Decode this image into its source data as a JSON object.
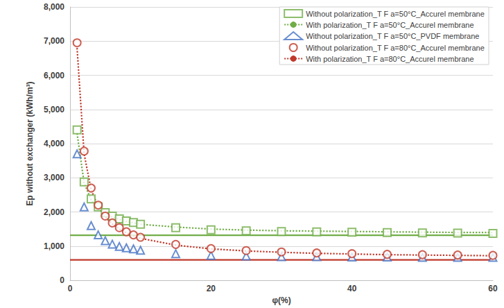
{
  "chart_data": {
    "type": "scatter",
    "x_label": "φ(%)",
    "y_label": "Ep without exchanger (kWh/m³)",
    "xlim": [
      0,
      60
    ],
    "xticks": [
      0,
      20,
      40,
      60
    ],
    "ylim": [
      0,
      8000
    ],
    "yticks": [
      0,
      1000,
      2000,
      3000,
      4000,
      5000,
      6000,
      7000,
      8000
    ],
    "grid": true,
    "legend": "top-right",
    "x": [
      1,
      2,
      3,
      4,
      5,
      6,
      7,
      8,
      9,
      10,
      15,
      20,
      25,
      30,
      35,
      40,
      45,
      50,
      55,
      60
    ],
    "series": [
      {
        "name": "Without polarization_T F a=50°C_Accurel membrane",
        "type": "scatter",
        "marker": "square",
        "color": "#70ad47",
        "values": [
          4400,
          2880,
          2380,
          2150,
          1980,
          1880,
          1800,
          1740,
          1690,
          1640,
          1540,
          1480,
          1450,
          1430,
          1420,
          1410,
          1400,
          1390,
          1380,
          1370
        ]
      },
      {
        "name": "With polarization_T F a=50°C_Accurel membrane",
        "type": "line",
        "line_style": "dotted",
        "color": "#70ad47",
        "values": [
          4300,
          2850,
          2350,
          2100,
          1950,
          1850,
          1780,
          1720,
          1680,
          1640,
          1560,
          1500,
          1470,
          1450,
          1440,
          1430,
          1420,
          1410,
          1400,
          1400
        ]
      },
      {
        "name": "Without polarization_T F a=50°C_PVDF membrane",
        "type": "scatter",
        "marker": "triangle",
        "color": "#4472c4",
        "values": [
          3700,
          2150,
          1600,
          1330,
          1160,
          1060,
          990,
          950,
          920,
          880,
          780,
          730,
          710,
          690,
          690,
          680,
          680,
          670,
          670,
          670
        ]
      },
      {
        "name": "Without polarization_T F a=80°C_Accurel membrane",
        "type": "scatter",
        "marker": "circle",
        "color": "#c0392b",
        "values": [
          6950,
          3780,
          2700,
          2200,
          1880,
          1680,
          1540,
          1420,
          1330,
          1260,
          1050,
          930,
          870,
          830,
          800,
          780,
          760,
          750,
          740,
          730
        ]
      },
      {
        "name": "With polarization_T F a=80°C_Accurel membrane",
        "type": "line",
        "line_style": "dotted",
        "color": "#c0392b",
        "values": [
          6800,
          3700,
          2650,
          2150,
          1850,
          1650,
          1500,
          1390,
          1300,
          1230,
          1030,
          920,
          860,
          820,
          790,
          770,
          750,
          740,
          730,
          720
        ]
      },
      {
        "type": "line",
        "line_style": "solid",
        "color": "#70ad47",
        "x": [
          0,
          60
        ],
        "values": [
          1320,
          1320
        ]
      },
      {
        "type": "line",
        "line_style": "solid",
        "color": "#c0392b",
        "x": [
          0,
          60
        ],
        "values": [
          600,
          600
        ]
      }
    ]
  }
}
